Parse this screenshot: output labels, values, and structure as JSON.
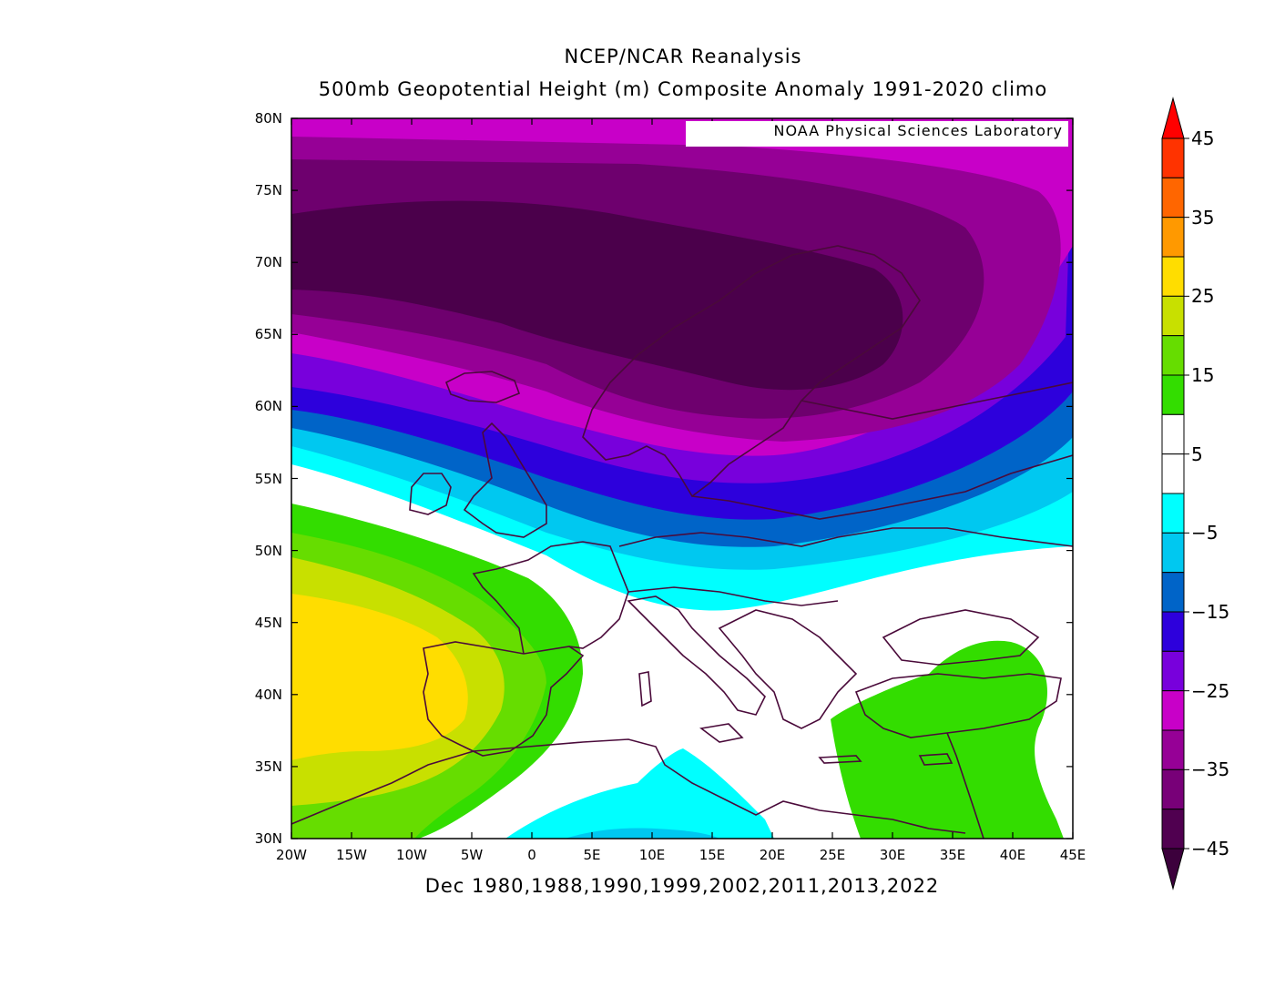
{
  "title": "NCEP/NCAR Reanalysis",
  "subtitle": "500mb Geopotential Height (m) Composite Anomaly 1991-2020 climo",
  "credit": "NOAA Physical Sciences Laboratory",
  "xlabel": "Dec 1980,1988,1990,1999,2002,2011,2013,2022",
  "lon_ticks": [
    "20W",
    "15W",
    "10W",
    "5W",
    "0",
    "5E",
    "10E",
    "15E",
    "20E",
    "25E",
    "30E",
    "35E",
    "40E",
    "45E"
  ],
  "lat_ticks": [
    "80N",
    "75N",
    "70N",
    "65N",
    "60N",
    "55N",
    "50N",
    "45N",
    "40N",
    "35N",
    "30N"
  ],
  "colorbar": {
    "labels": [
      "45",
      "35",
      "25",
      "15",
      "5",
      "-5",
      "-15",
      "-25",
      "-35",
      "-45"
    ],
    "colors": [
      "#ff0000",
      "#ff3300",
      "#ff6600",
      "#ff9900",
      "#ffdd00",
      "#c8e000",
      "#66dd00",
      "#33dd00",
      "#ffffff",
      "#ffffff",
      "#00ffff",
      "#00c8f0",
      "#0064c8",
      "#2d00dc",
      "#7800dc",
      "#c800c8",
      "#960096",
      "#780078",
      "#500050",
      "#3c003c"
    ]
  },
  "colors": {
    "c_m45": "#4b004b",
    "c_m40": "#6e006e",
    "c_m35": "#960096",
    "c_m30": "#c800c8",
    "c_m25": "#7800dc",
    "c_m20": "#2d00dc",
    "c_m15": "#0064c8",
    "c_m10": "#00c8f0",
    "c_m5": "#00ffff",
    "c_p10": "#33dd00",
    "c_p15": "#66dd00",
    "c_p20": "#c8e000",
    "c_p25": "#ffdd00",
    "coast": "#4a0a3a"
  }
}
